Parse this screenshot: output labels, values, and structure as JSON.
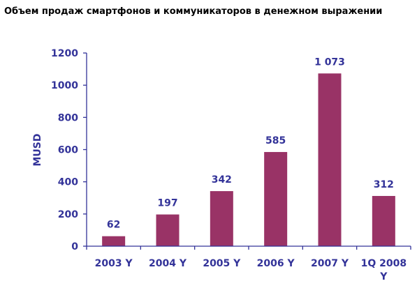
{
  "chart_data": {
    "type": "bar",
    "title": "Объем продаж смартфонов и коммуникаторов в денежном выражении",
    "ylabel": "MUSD",
    "xlabel": "",
    "categories": [
      "2003 Y",
      "2004 Y",
      "2005 Y",
      "2006 Y",
      "2007 Y",
      "1Q 2008 Y"
    ],
    "values": [
      62,
      197,
      342,
      585,
      1073,
      312
    ],
    "data_labels": [
      "62",
      "197",
      "342",
      "585",
      "1 073",
      "312"
    ],
    "ylim": [
      0,
      1200
    ],
    "yticks": [
      0,
      200,
      400,
      600,
      800,
      1000,
      1200
    ],
    "grid": false,
    "legend": "none",
    "colors": {
      "bar": "#993366",
      "axis": "#333399",
      "text": "#333399"
    }
  }
}
